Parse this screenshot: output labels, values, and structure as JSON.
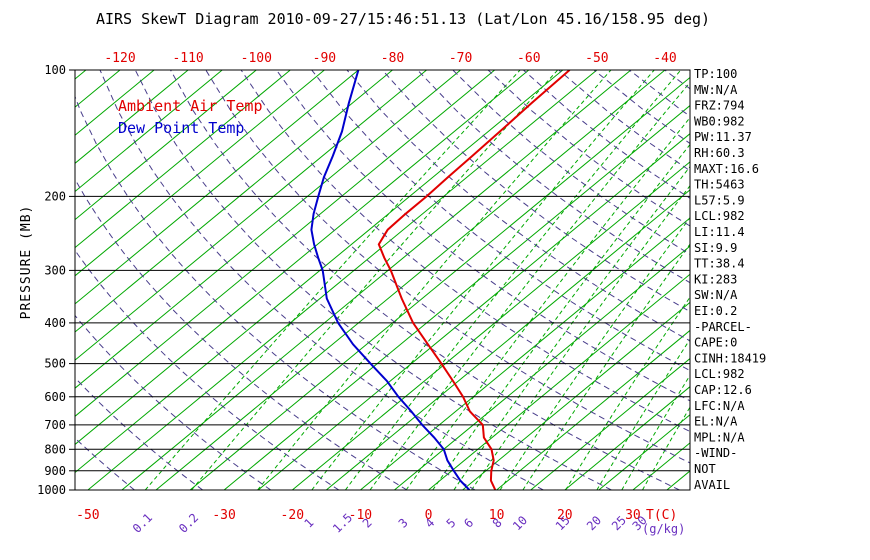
{
  "title": "AIRS SkewT Diagram 2010-09-27/15:46:51.13 (Lat/Lon 45.16/158.95 deg)",
  "legend": {
    "temp": "Ambient Air Temp",
    "dewpoint": "Dew Point Temp"
  },
  "axes": {
    "y_label": "PRESSURE (MB)",
    "pressure_ticks": [
      100,
      200,
      300,
      400,
      500,
      600,
      700,
      800,
      900,
      1000
    ],
    "top_temp_ticks": [
      -120,
      -110,
      -100,
      -90,
      -80,
      -70,
      -60,
      -50,
      -40
    ],
    "bottom_temp_ticks": [
      -50,
      -30,
      -20,
      -10,
      0,
      10,
      20,
      30
    ],
    "bottom_temp_unit": "T(C)",
    "mixing_ratio_labels": [
      0.1,
      0.2,
      1,
      1.5,
      2,
      3,
      4,
      5,
      6,
      8,
      10,
      15,
      20,
      25,
      30
    ],
    "mixing_ratio_unit": "(g/kg)"
  },
  "stats": [
    "TP:100",
    "MW:N/A",
    "FRZ:794",
    "WB0:982",
    "PW:11.37",
    "RH:60.3",
    "MAXT:16.6",
    "TH:5463",
    "L57:5.9",
    "LCL:982",
    "LI:11.4",
    "SI:9.9",
    "TT:38.4",
    "KI:283",
    "SW:N/A",
    "EI:0.2",
    "-PARCEL-",
    "CAPE:0",
    "CINH:18419",
    "LCL:982",
    "CAP:12.6",
    "LFC:N/A",
    "EL:N/A",
    "MPL:N/A",
    "-WIND-",
    "NOT",
    "AVAIL"
  ],
  "colors": {
    "temp_red": "#e10000",
    "dewpoint_blue": "#0000cd",
    "isotherm_green": "#00a800",
    "adiabat_purple": "#483d8b",
    "mixing_label_purple": "#6a30c0",
    "axis_black": "#000000"
  },
  "chart_data": {
    "type": "line",
    "title": "AIRS SkewT Diagram 2010-09-27/15:46:51.13 (Lat/Lon 45.16/158.95 deg)",
    "x_label": "T(C)",
    "y_label": "PRESSURE (MB)",
    "y_scale": "log",
    "y_range_mb": [
      100,
      1000
    ],
    "top_axis_temp_range_c": [
      -120,
      -40
    ],
    "grid": {
      "isotherms_c": {
        "start": -155,
        "end": 55,
        "step": 5
      },
      "dry_adiabats_k": {
        "start": 230,
        "end": 500,
        "step": 10
      },
      "mixing_ratio_lines_gkg": [
        0.1,
        0.2,
        0.5,
        1,
        1.5,
        2,
        3,
        4,
        5,
        6,
        8,
        10,
        15,
        20,
        25,
        30
      ]
    },
    "series": [
      {
        "name": "Ambient Air Temp",
        "color": "#e10000",
        "points_p_t": [
          [
            1000,
            9.8
          ],
          [
            950,
            7.5
          ],
          [
            900,
            5.8
          ],
          [
            850,
            4.3
          ],
          [
            800,
            2.0
          ],
          [
            750,
            -1.2
          ],
          [
            700,
            -3.6
          ],
          [
            650,
            -7.9
          ],
          [
            600,
            -11.5
          ],
          [
            550,
            -15.8
          ],
          [
            500,
            -20.6
          ],
          [
            450,
            -26.0
          ],
          [
            400,
            -32.0
          ],
          [
            350,
            -38.0
          ],
          [
            300,
            -44.6
          ],
          [
            280,
            -47.8
          ],
          [
            260,
            -51.0
          ],
          [
            240,
            -52.3
          ],
          [
            220,
            -52.5
          ],
          [
            200,
            -52.5
          ],
          [
            180,
            -52.8
          ],
          [
            160,
            -53.0
          ],
          [
            140,
            -53.3
          ],
          [
            120,
            -53.7
          ],
          [
            100,
            -54.0
          ]
        ]
      },
      {
        "name": "Dew Point Temp",
        "color": "#0000cd",
        "points_p_t": [
          [
            1000,
            6.0
          ],
          [
            950,
            3.0
          ],
          [
            900,
            0.3
          ],
          [
            850,
            -2.5
          ],
          [
            800,
            -5.0
          ],
          [
            750,
            -8.5
          ],
          [
            700,
            -12.5
          ],
          [
            650,
            -16.5
          ],
          [
            600,
            -21.0
          ],
          [
            550,
            -25.5
          ],
          [
            500,
            -31.0
          ],
          [
            450,
            -37.0
          ],
          [
            400,
            -43.0
          ],
          [
            350,
            -49.0
          ],
          [
            300,
            -54.6
          ],
          [
            280,
            -57.5
          ],
          [
            260,
            -60.5
          ],
          [
            240,
            -63.5
          ],
          [
            220,
            -66.0
          ],
          [
            200,
            -68.4
          ],
          [
            180,
            -71.0
          ],
          [
            160,
            -73.5
          ],
          [
            140,
            -76.5
          ],
          [
            120,
            -80.5
          ],
          [
            100,
            -85.0
          ]
        ]
      }
    ]
  }
}
